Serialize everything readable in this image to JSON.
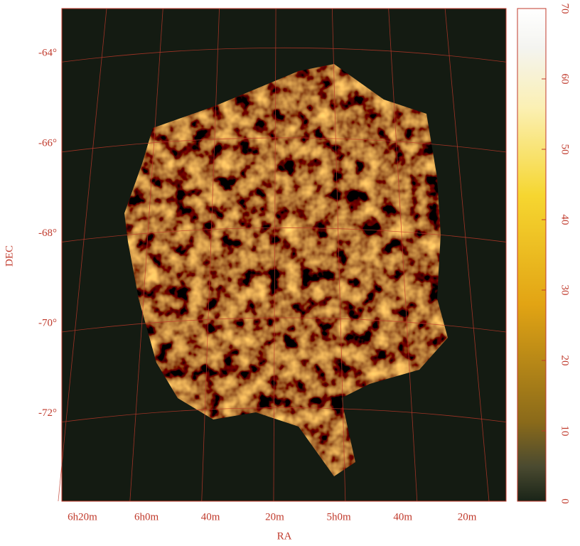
{
  "chart_data": {
    "type": "image",
    "xlabel": "RA",
    "ylabel": "DEC",
    "xlim": [
      6.44,
      4.13
    ],
    "xticks": [
      {
        "value": 6.333,
        "label": "6h20m"
      },
      {
        "value": 6,
        "label": "6h0m"
      },
      {
        "value": 5.667,
        "label": "40m"
      },
      {
        "value": 5.333,
        "label": "20m"
      },
      {
        "value": 5,
        "label": "5h0m"
      },
      {
        "value": 4.667,
        "label": "40m"
      },
      {
        "value": 4.333,
        "label": "20m"
      }
    ],
    "ylim": [
      -73.95,
      -63.0
    ],
    "yticks": [
      {
        "value": -64,
        "label": "-64°"
      },
      {
        "value": -66,
        "label": "-66°"
      },
      {
        "value": -68,
        "label": "-68°"
      },
      {
        "value": -70,
        "label": "-70°"
      },
      {
        "value": -72,
        "label": "-72°"
      }
    ],
    "clim": [
      0,
      70
    ],
    "cticks": [
      0,
      10,
      20,
      30,
      40,
      50,
      60,
      70
    ],
    "grid": true,
    "grid_color": "#c0392b"
  }
}
